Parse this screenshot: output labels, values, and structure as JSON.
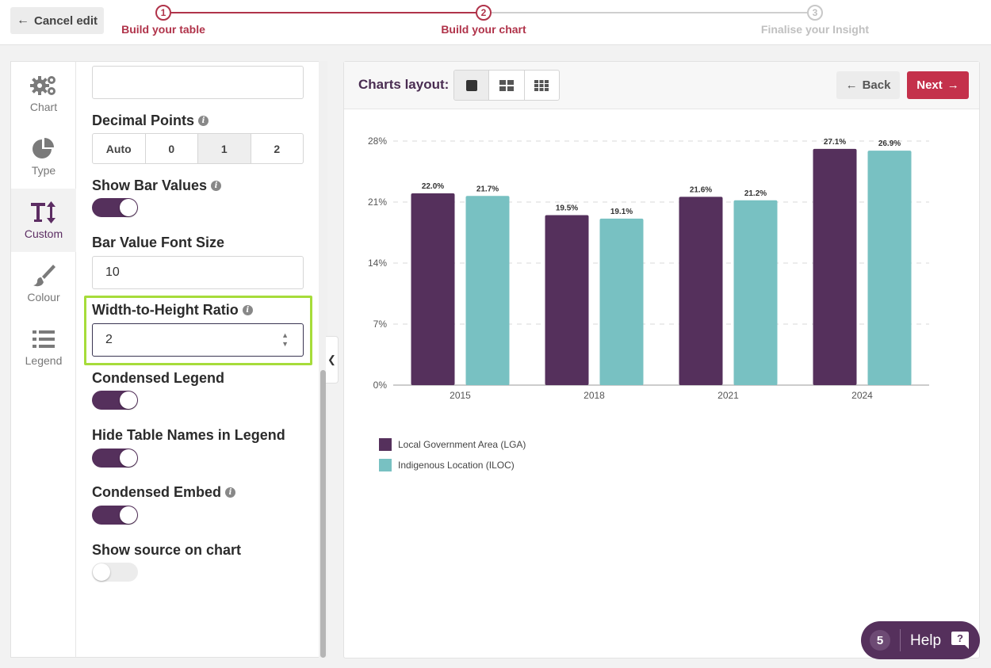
{
  "header": {
    "cancel_label": "Cancel edit",
    "steps": [
      {
        "number": "1",
        "label": "Build your table"
      },
      {
        "number": "2",
        "label": "Build your chart"
      },
      {
        "number": "3",
        "label": "Finalise your Insight"
      }
    ],
    "colors": {
      "active": "#b0334a",
      "inactive": "#c8c8c8"
    }
  },
  "nav": {
    "items": [
      {
        "label": "Chart",
        "icon": "gears-icon"
      },
      {
        "label": "Type",
        "icon": "pie-chart-icon"
      },
      {
        "label": "Custom",
        "icon": "text-height-icon",
        "active": true
      },
      {
        "label": "Colour",
        "icon": "paint-brush-icon"
      },
      {
        "label": "Legend",
        "icon": "list-icon"
      }
    ]
  },
  "settings": {
    "top_input_value": "",
    "decimal_points": {
      "label": "Decimal Points",
      "options": [
        "Auto",
        "0",
        "1",
        "2"
      ],
      "selected": "1"
    },
    "show_bar_values": {
      "label": "Show Bar Values",
      "on": true
    },
    "bar_value_font_size": {
      "label": "Bar Value Font Size",
      "value": "10"
    },
    "width_height_ratio": {
      "label": "Width-to-Height Ratio",
      "value": "2"
    },
    "condensed_legend": {
      "label": "Condensed Legend",
      "on": true
    },
    "hide_table_names": {
      "label": "Hide Table Names in Legend",
      "on": true
    },
    "condensed_embed": {
      "label": "Condensed Embed",
      "on": true
    },
    "show_source": {
      "label": "Show source on chart",
      "on": false
    }
  },
  "chart_panel": {
    "layout_label": "Charts layout:",
    "back_label": "Back",
    "next_label": "Next"
  },
  "chart_data": {
    "type": "bar",
    "categories": [
      "2015",
      "2018",
      "2021",
      "2024"
    ],
    "series": [
      {
        "name": "Local Government Area (LGA)",
        "color": "#55305c",
        "values": [
          22.0,
          19.5,
          21.6,
          27.1
        ]
      },
      {
        "name": "Indigenous Location (ILOC)",
        "color": "#78c1c2",
        "values": [
          21.7,
          19.1,
          21.2,
          26.9
        ]
      }
    ],
    "yticks": [
      0,
      7,
      14,
      21,
      28
    ],
    "ylim": [
      0,
      28
    ],
    "value_suffix": "%",
    "grid": true,
    "legend_position": "bottom-left"
  },
  "help": {
    "count": "5",
    "label": "Help"
  }
}
